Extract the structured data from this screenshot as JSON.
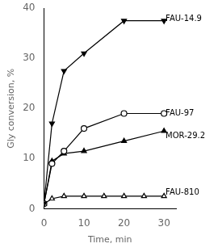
{
  "chart_data": {
    "type": "line",
    "xlabel": "Time, min",
    "ylabel": "Gly conversion, %",
    "xlim": [
      0,
      33
    ],
    "ylim": [
      0,
      40
    ],
    "xticks": [
      0,
      10,
      20,
      30
    ],
    "yticks": [
      0,
      10,
      20,
      30,
      40
    ],
    "grid": false,
    "series": [
      {
        "name": "FAU-14.9",
        "color": "#000000",
        "marker": "triangle_down_filled",
        "x": [
          0,
          2,
          5,
          10,
          20,
          30
        ],
        "values": [
          1.0,
          17.0,
          27.5,
          31.0,
          37.5,
          37.5
        ]
      },
      {
        "name": "FAU-97",
        "color": "#000000",
        "marker": "circle_open",
        "x": [
          0,
          2,
          5,
          10,
          20,
          30
        ],
        "values": [
          1.0,
          9.0,
          11.5,
          16.0,
          19.0,
          19.0
        ]
      },
      {
        "name": "MOR-29.2",
        "color": "#000000",
        "marker": "triangle_filled",
        "x": [
          0,
          2,
          5,
          10,
          20,
          30
        ],
        "values": [
          1.0,
          9.5,
          11.0,
          11.5,
          13.5,
          15.5
        ]
      },
      {
        "name": "FAU-810",
        "color": "#000000",
        "marker": "triangle_open",
        "x": [
          0,
          2,
          5,
          10,
          15,
          20,
          25,
          30
        ],
        "values": [
          1.0,
          2.0,
          2.5,
          2.5,
          2.5,
          2.5,
          2.5,
          2.5
        ]
      }
    ],
    "annotations": [
      {
        "text": "FAU-14.9",
        "x": 30.4,
        "y": 37.8
      },
      {
        "text": "FAU-97",
        "x": 30.4,
        "y": 19.0
      },
      {
        "text": "MOR-29.2",
        "x": 30.4,
        "y": 14.5
      },
      {
        "text": "FAU-810",
        "x": 30.4,
        "y": 3.2
      }
    ]
  }
}
